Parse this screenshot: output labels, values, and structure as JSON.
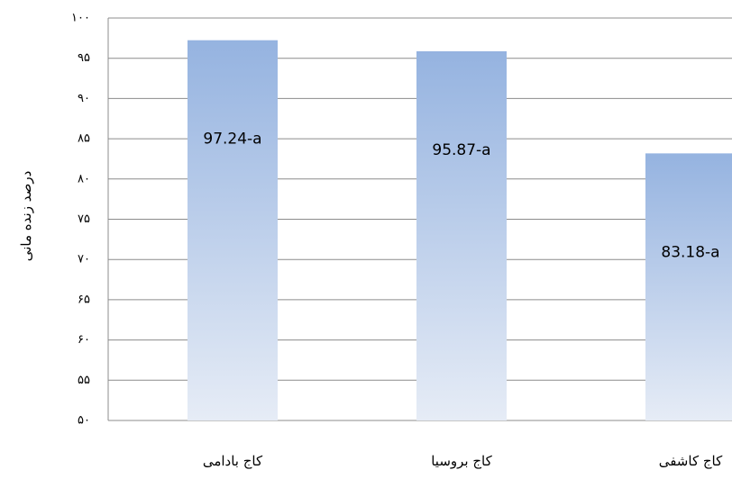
{
  "chart_data": {
    "type": "bar",
    "y_label": "درصد زنده مانی",
    "categories": [
      "کاج بادامی",
      "کاج بروسیا",
      "کاج کاشفی"
    ],
    "values": [
      97.24,
      95.87,
      83.18
    ],
    "value_labels": [
      "97.24-a",
      "95.87-a",
      "83.18-a"
    ],
    "color": "#95b3e0",
    "ylim": [
      50,
      100
    ],
    "yticks": [
      {
        "value": 50,
        "label": "۵۰"
      },
      {
        "value": 55,
        "label": "۵۵"
      },
      {
        "value": 60,
        "label": "۶۰"
      },
      {
        "value": 65,
        "label": "۶۵"
      },
      {
        "value": 70,
        "label": "۷۰"
      },
      {
        "value": 75,
        "label": "۷۵"
      },
      {
        "value": 80,
        "label": "۸۰"
      },
      {
        "value": 85,
        "label": "۸۵"
      },
      {
        "value": 90,
        "label": "۹۰"
      },
      {
        "value": 95,
        "label": "۹۵"
      },
      {
        "value": 100,
        "label": "۱۰۰"
      }
    ],
    "grid": true
  }
}
